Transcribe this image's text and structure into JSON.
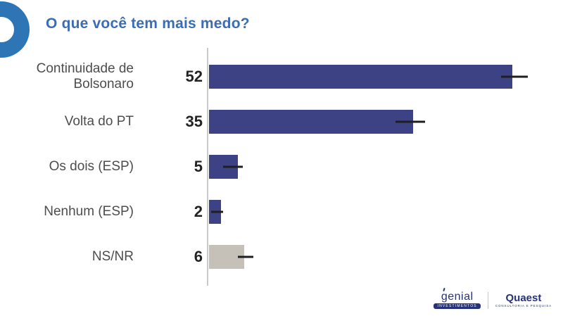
{
  "title": "O que você tem mais medo?",
  "chart_data": {
    "type": "bar",
    "orientation": "horizontal",
    "title": "O que você tem mais medo?",
    "categories": [
      "Continuidade de Bolsonaro",
      "Volta do PT",
      "Os dois (ESP)",
      "Nenhum (ESP)",
      "NS/NR"
    ],
    "values": [
      52,
      35,
      5,
      2,
      6
    ],
    "value_labels": [
      "52",
      "35",
      "5",
      "2",
      "6"
    ],
    "error_intervals": [
      [
        50,
        54.6
      ],
      [
        32,
        37
      ],
      [
        2.4,
        5.8
      ],
      [
        0.4,
        2.4
      ],
      [
        4.9,
        7.6
      ]
    ],
    "bar_colors": [
      "#3D4284",
      "#3D4284",
      "#3D4284",
      "#3D4284",
      "#C5C0B8"
    ],
    "xlim": [
      0,
      60
    ],
    "grid": false,
    "legend": null,
    "xlabel": "",
    "ylabel": ""
  },
  "colors": {
    "bar_navy": "#3D4284",
    "bar_gray": "#C5C0B8",
    "title_blue": "#3B6DB5",
    "ring_blue": "#2E75B6",
    "axis_gray": "#C9C9C9",
    "error_bar": "#1F1F1F",
    "label_gray": "#4D4D4D",
    "logo_navy": "#26337B"
  },
  "branding": {
    "genial": {
      "name": "genial",
      "tagline": "investimentos"
    },
    "quaest": {
      "name": "Quaest",
      "tagline": "Consultoria e Pesquisa"
    }
  }
}
